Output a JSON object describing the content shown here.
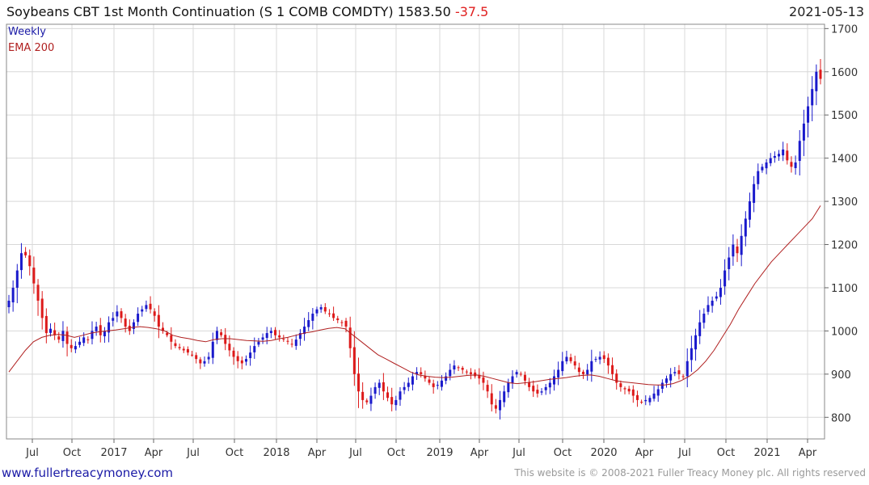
{
  "header": {
    "title": "Soybeans CBT 1st Month Continuation (S 1 COMB COMDTY) 1583.50",
    "change": "-37.5",
    "date": "2021-05-13"
  },
  "legend": {
    "weekly": "Weekly",
    "ema": "EMA 200"
  },
  "footer": {
    "site": "www.fullertreacymoney.com",
    "copyright": "This website is © 2008-2021 Fuller Treacy Money plc. All rights reserved"
  },
  "colors": {
    "up": "#1a1acc",
    "down": "#dd1a1a",
    "ema": "#b02020",
    "grid": "#d8d8d8"
  },
  "chart_data": {
    "type": "candlestick",
    "interval": "weekly",
    "ylim": [
      750,
      1710
    ],
    "y_ticks": [
      800,
      900,
      1000,
      1100,
      1200,
      1300,
      1400,
      1500,
      1600,
      1700
    ],
    "x_ticks": [
      "Jul",
      "Oct",
      "2017",
      "Apr",
      "Jul",
      "Oct",
      "2018",
      "Apr",
      "Jul",
      "Oct",
      "2019",
      "Apr",
      "Jul",
      "Oct",
      "2020",
      "Apr",
      "Jul",
      "Oct",
      "2021",
      "Apr"
    ],
    "grid": true,
    "series": [
      {
        "name": "Weekly",
        "close_approx": [
          1070,
          1100,
          1140,
          1180,
          1175,
          1150,
          1110,
          1070,
          1030,
          995,
          1005,
          990,
          980,
          1000,
          970,
          960,
          965,
          975,
          985,
          980,
          1000,
          1010,
          990,
          1000,
          1020,
          1030,
          1045,
          1030,
          1010,
          1000,
          1020,
          1040,
          1050,
          1060,
          1050,
          1035,
          1010,
          1000,
          990,
          975,
          965,
          960,
          955,
          950,
          945,
          935,
          925,
          930,
          940,
          975,
          1000,
          990,
          970,
          955,
          940,
          930,
          925,
          935,
          950,
          965,
          975,
          985,
          995,
          1000,
          990,
          985,
          980,
          975,
          970,
          980,
          995,
          1010,
          1025,
          1040,
          1050,
          1055,
          1045,
          1040,
          1030,
          1025,
          1020,
          1010,
          960,
          900,
          860,
          840,
          835,
          850,
          870,
          880,
          860,
          845,
          830,
          840,
          860,
          870,
          880,
          895,
          905,
          900,
          890,
          880,
          870,
          875,
          885,
          895,
          910,
          920,
          915,
          910,
          905,
          900,
          895,
          890,
          880,
          860,
          830,
          820,
          840,
          860,
          880,
          895,
          905,
          900,
          885,
          870,
          860,
          855,
          860,
          870,
          880,
          895,
          910,
          930,
          940,
          930,
          920,
          905,
          900,
          910,
          930,
          935,
          940,
          935,
          920,
          900,
          880,
          870,
          865,
          860,
          850,
          840,
          835,
          840,
          845,
          855,
          865,
          880,
          890,
          900,
          905,
          900,
          895,
          930,
          960,
          990,
          1020,
          1040,
          1060,
          1070,
          1080,
          1100,
          1140,
          1170,
          1200,
          1180,
          1220,
          1260,
          1300,
          1340,
          1370,
          1380,
          1390,
          1400,
          1405,
          1410,
          1420,
          1395,
          1380,
          1390,
          1440,
          1480,
          1520,
          1560,
          1600,
          1583.5
        ]
      },
      {
        "name": "EMA 200",
        "values_approx": [
          905,
          930,
          955,
          975,
          985,
          990,
          992,
          990,
          985,
          990,
          995,
          998,
          1000,
          1002,
          1005,
          1008,
          1010,
          1008,
          1005,
          1000,
          990,
          985,
          982,
          978,
          975,
          980,
          982,
          982,
          980,
          978,
          977,
          976,
          978,
          982,
          985,
          990,
          995,
          998,
          1002,
          1006,
          1008,
          1005,
          990,
          975,
          960,
          945,
          935,
          925,
          915,
          905,
          898,
          895,
          893,
          892,
          893,
          895,
          897,
          898,
          895,
          890,
          885,
          880,
          878,
          880,
          882,
          885,
          888,
          890,
          892,
          895,
          897,
          898,
          895,
          890,
          885,
          882,
          880,
          878,
          876,
          875,
          875,
          878,
          885,
          895,
          910,
          930,
          955,
          985,
          1015,
          1050,
          1080,
          1110,
          1135,
          1160,
          1180,
          1200,
          1220,
          1240,
          1260,
          1290
        ]
      }
    ]
  }
}
